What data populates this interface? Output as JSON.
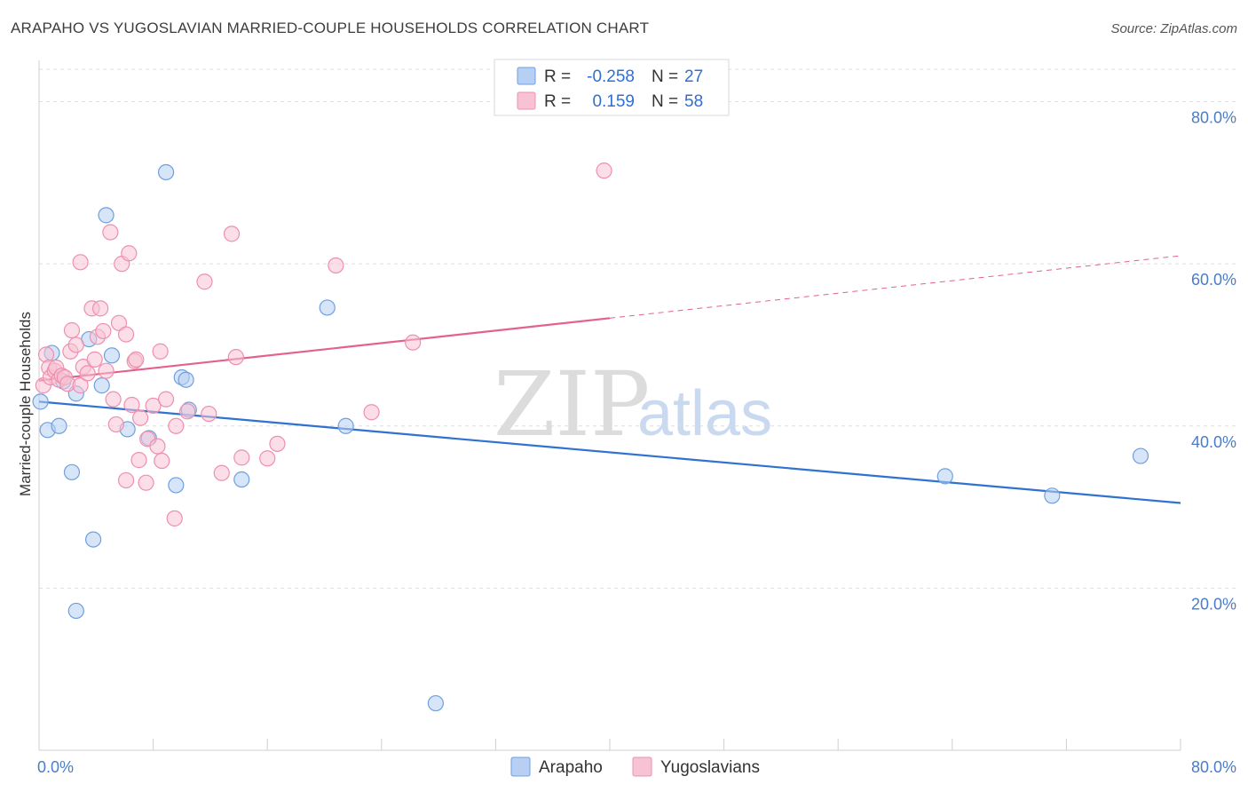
{
  "title": "ARAPAHO VS YUGOSLAVIAN MARRIED-COUPLE HOUSEHOLDS CORRELATION CHART",
  "source": "Source: ZipAtlas.com",
  "watermark": {
    "zip": "ZIP",
    "atlas": "atlas"
  },
  "colors": {
    "arapaho": "#6f9fe0",
    "arapaho_fill": "#b7cff2",
    "arapaho_line": "#2f72d0",
    "yugo": "#ee8fae",
    "yugo_fill": "#f7c3d4",
    "yugo_line": "#e2628c",
    "tick": "#4a7cc9",
    "grid": "#dedede"
  },
  "legend": {
    "rows": [
      {
        "r_label": "R =",
        "r_value": "-0.258",
        "n_label": "N =",
        "n_value": "27"
      },
      {
        "r_label": "R =",
        "r_value": "0.159",
        "n_label": "N =",
        "n_value": "58"
      }
    ]
  },
  "chart_data": {
    "type": "scatter",
    "title": "ARAPAHO VS YUGOSLAVIAN MARRIED-COUPLE HOUSEHOLDS CORRELATION CHART",
    "xlabel": "",
    "ylabel": "Married-couple Households",
    "xlim": [
      0,
      80
    ],
    "ylim": [
      0,
      84
    ],
    "x_tick_labels": [
      "0.0%",
      "80.0%"
    ],
    "y_ticks": [
      20,
      40,
      60,
      80
    ],
    "y_tick_labels": [
      "20.0%",
      "40.0%",
      "60.0%",
      "80.0%"
    ],
    "series": [
      {
        "name": "Arapaho",
        "r": -0.258,
        "n": 27,
        "trend": {
          "x0": 0,
          "y0": 43.0,
          "x1": 80,
          "y1": 30.5,
          "dashed_from": null
        },
        "points": [
          [
            0.1,
            43.0
          ],
          [
            0.6,
            39.5
          ],
          [
            0.9,
            49.0
          ],
          [
            1.4,
            40.0
          ],
          [
            1.7,
            45.5
          ],
          [
            2.3,
            34.3
          ],
          [
            2.6,
            17.2
          ],
          [
            2.6,
            44.0
          ],
          [
            3.5,
            50.7
          ],
          [
            3.8,
            26.0
          ],
          [
            4.4,
            45.0
          ],
          [
            4.7,
            66.0
          ],
          [
            5.1,
            48.7
          ],
          [
            6.2,
            39.6
          ],
          [
            7.7,
            38.5
          ],
          [
            8.9,
            71.3
          ],
          [
            9.6,
            32.7
          ],
          [
            10.0,
            46.0
          ],
          [
            10.3,
            45.7
          ],
          [
            10.5,
            42.0
          ],
          [
            14.2,
            33.4
          ],
          [
            20.2,
            54.6
          ],
          [
            21.5,
            40.0
          ],
          [
            27.8,
            5.8
          ],
          [
            63.5,
            33.8
          ],
          [
            71.0,
            31.4
          ],
          [
            77.2,
            36.3
          ]
        ]
      },
      {
        "name": "Yugoslavians",
        "r": 0.159,
        "n": 58,
        "trend": {
          "x0": 0,
          "y0": 45.6,
          "x1": 80,
          "y1": 61.0,
          "dashed_from": 40
        },
        "points": [
          [
            0.3,
            45.0
          ],
          [
            0.5,
            48.8
          ],
          [
            0.7,
            47.2
          ],
          [
            0.8,
            46.0
          ],
          [
            1.1,
            46.8
          ],
          [
            1.2,
            47.2
          ],
          [
            1.4,
            45.7
          ],
          [
            1.6,
            46.2
          ],
          [
            1.8,
            46.0
          ],
          [
            2.0,
            45.2
          ],
          [
            2.2,
            49.2
          ],
          [
            2.3,
            51.8
          ],
          [
            2.6,
            50.0
          ],
          [
            2.9,
            45.0
          ],
          [
            2.9,
            60.2
          ],
          [
            3.1,
            47.3
          ],
          [
            3.4,
            46.5
          ],
          [
            3.7,
            54.5
          ],
          [
            3.9,
            48.2
          ],
          [
            4.1,
            51.0
          ],
          [
            4.3,
            54.5
          ],
          [
            4.5,
            51.7
          ],
          [
            4.7,
            46.8
          ],
          [
            5.0,
            63.9
          ],
          [
            5.2,
            43.3
          ],
          [
            5.4,
            40.2
          ],
          [
            5.6,
            52.7
          ],
          [
            5.8,
            60.0
          ],
          [
            6.1,
            51.3
          ],
          [
            6.1,
            33.3
          ],
          [
            6.3,
            61.3
          ],
          [
            6.5,
            42.6
          ],
          [
            6.7,
            48.0
          ],
          [
            6.8,
            48.2
          ],
          [
            7.0,
            35.8
          ],
          [
            7.1,
            41.0
          ],
          [
            7.5,
            33.0
          ],
          [
            7.6,
            38.4
          ],
          [
            8.0,
            42.5
          ],
          [
            8.3,
            37.5
          ],
          [
            8.5,
            49.2
          ],
          [
            8.6,
            35.7
          ],
          [
            8.9,
            43.3
          ],
          [
            9.5,
            28.6
          ],
          [
            9.6,
            40.0
          ],
          [
            10.4,
            41.8
          ],
          [
            11.6,
            57.8
          ],
          [
            11.9,
            41.5
          ],
          [
            12.8,
            34.2
          ],
          [
            13.5,
            63.7
          ],
          [
            13.8,
            48.5
          ],
          [
            16.0,
            36.0
          ],
          [
            16.7,
            37.8
          ],
          [
            20.8,
            59.8
          ],
          [
            23.3,
            41.7
          ],
          [
            26.2,
            50.3
          ],
          [
            39.6,
            71.5
          ],
          [
            14.2,
            36.1
          ]
        ]
      }
    ]
  },
  "bottom_legend": {
    "items": [
      {
        "label": "Arapaho"
      },
      {
        "label": "Yugoslavians"
      }
    ]
  }
}
